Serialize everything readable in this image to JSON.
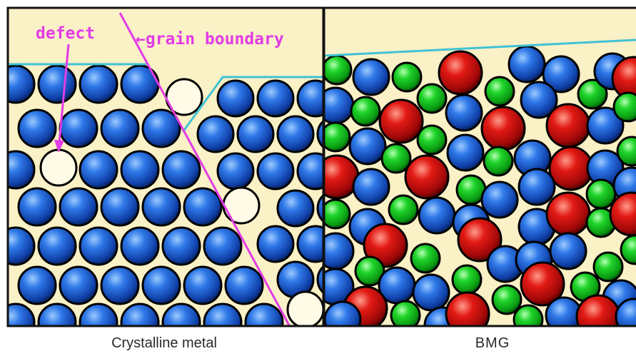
{
  "labels": {
    "defect": "defect",
    "grain_boundary": "←grain boundary"
  },
  "captions": {
    "left": "Crystalline metal",
    "right": "BMG"
  },
  "colors": {
    "background": "#fbf1c6",
    "frame": "#111111",
    "annotation": "#e23ce6",
    "surface_line": "#40c2d4",
    "atom_blue": "#1f5fd6",
    "atom_red": "#d11515",
    "atom_green": "#14c81e",
    "vacancy_fill": "#fffbe6"
  }
}
